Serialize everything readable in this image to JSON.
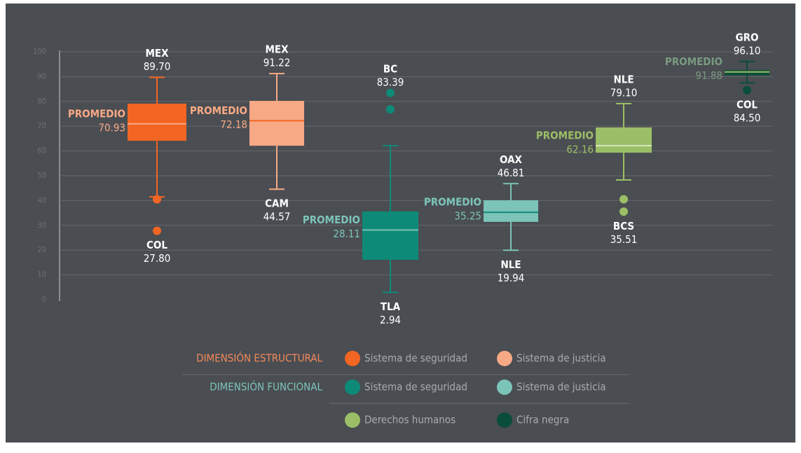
{
  "chart_data": {
    "type": "box",
    "ylim": [
      0,
      100
    ],
    "yticks": [
      0,
      10,
      20,
      30,
      40,
      50,
      60,
      70,
      80,
      90,
      100
    ],
    "grid": true,
    "groups": [
      {
        "name": "DIMENSIÓN ESTRUCTURAL",
        "color": "#f3895a"
      },
      {
        "name": "DIMENSIÓN FUNCIONAL",
        "color": "#7cc4b8"
      }
    ],
    "series": [
      {
        "name": "Sistema de seguridad",
        "color": "#f26522",
        "line_color": "#f7a985",
        "whisker_low": 41.5,
        "q1": 64.1,
        "mean": 70.93,
        "mean_label": "70.93",
        "q3": 79.1,
        "whisker_high": 89.7,
        "outliers": [
          40.5,
          27.8
        ],
        "max_name": "MEX",
        "max": 89.7,
        "max_label": "89.70",
        "min_name": "COL",
        "min": 27.8,
        "min_label": "27.80",
        "promedio": "PROMEDIO",
        "promedio_color": "#f7a985"
      },
      {
        "name": "Sistema de justicia",
        "color": "#f7a985",
        "line_color": "#f26522",
        "whisker_low": 44.57,
        "q1": 62.1,
        "mean": 72.18,
        "mean_label": "72.18",
        "q3": 80.2,
        "whisker_high": 91.22,
        "outliers": [],
        "max_name": "MEX",
        "max": 91.22,
        "max_label": "91.22",
        "min_name": "CAM",
        "min": 44.57,
        "min_label": "44.57",
        "promedio": "PROMEDIO",
        "promedio_color": "#f7a985"
      },
      {
        "name": "Sistema de seguridad",
        "color": "#0e8a78",
        "line_color": "#7cc4b8",
        "whisker_low": 2.94,
        "q1": 16.1,
        "mean": 28.11,
        "mean_label": "28.11",
        "q3": 35.6,
        "whisker_high": 62.1,
        "outliers": [
          83.39,
          76.8
        ],
        "max_name": "BC",
        "max": 83.39,
        "max_label": "83.39",
        "min_name": "TLA",
        "min": 2.94,
        "min_label": "2.94",
        "promedio": "PROMEDIO",
        "promedio_color": "#7cc4b8"
      },
      {
        "name": "Sistema de justicia",
        "color": "#7cc4b8",
        "line_color": "#0e8a78",
        "whisker_low": 19.94,
        "q1": 31.4,
        "mean": 35.25,
        "mean_label": "35.25",
        "q3": 40.1,
        "whisker_high": 46.81,
        "outliers": [],
        "max_name": "OAX",
        "max": 46.81,
        "max_label": "46.81",
        "min_name": "NLE",
        "min": 19.94,
        "min_label": "19.94",
        "promedio": "PROMEDIO",
        "promedio_color": "#7cc4b8"
      },
      {
        "name": "Derechos humanos",
        "color": "#9bbf66",
        "line_color": "#d6e6bd",
        "whisker_low": 48.3,
        "q1": 59.3,
        "mean": 62.16,
        "mean_label": "62.16",
        "q3": 69.5,
        "whisker_high": 79.1,
        "outliers": [
          40.5,
          35.51
        ],
        "max_name": "NLE",
        "max": 79.1,
        "max_label": "79.10",
        "min_name": "BCS",
        "min": 35.51,
        "min_label": "35.51",
        "promedio": "PROMEDIO",
        "promedio_color": "#9bbf66"
      },
      {
        "name": "Cifra negra",
        "color": "#0a4d3a",
        "line_color": "#9bbf66",
        "whisker_low": 87.5,
        "q1": 90.5,
        "mean": 91.88,
        "mean_label": "91.88",
        "q3": 92.6,
        "whisker_high": 96.1,
        "outliers": [
          84.5
        ],
        "max_name": "GRO",
        "max": 96.1,
        "max_label": "96.10",
        "min_name": "COL",
        "min": 84.5,
        "min_label": "84.50",
        "promedio": "PROMEDIO",
        "promedio_color": "#7a9a82"
      }
    ]
  }
}
